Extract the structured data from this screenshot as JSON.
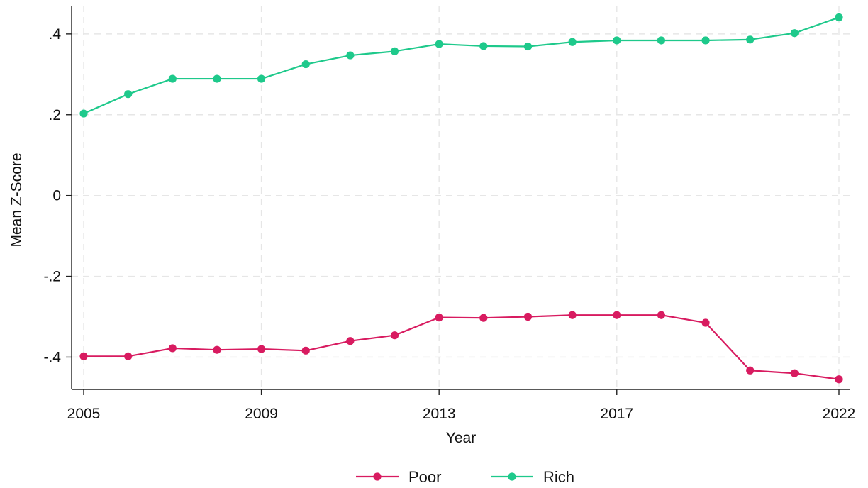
{
  "chart_data": {
    "type": "line",
    "xlabel": "Year",
    "ylabel": "Mean Z-Score",
    "xlim": [
      2005,
      2022
    ],
    "ylim": [
      -0.48,
      0.47
    ],
    "x_ticks": [
      2005,
      2009,
      2013,
      2017,
      2022
    ],
    "y_ticks": [
      {
        "value": 0.4,
        "label": ".4"
      },
      {
        "value": 0.2,
        "label": ".2"
      },
      {
        "value": 0,
        "label": "0"
      },
      {
        "value": -0.2,
        "label": "-.2"
      },
      {
        "value": -0.4,
        "label": "-.4"
      }
    ],
    "grid": true,
    "legend_position": "bottom-center",
    "x": [
      2005,
      2006,
      2007,
      2008,
      2009,
      2010,
      2011,
      2012,
      2013,
      2014,
      2015,
      2016,
      2017,
      2018,
      2019,
      2020,
      2021,
      2022
    ],
    "series": [
      {
        "name": "Poor",
        "color": "#d81b60",
        "values": [
          -0.398,
          -0.398,
          -0.378,
          -0.382,
          -0.38,
          -0.384,
          -0.36,
          -0.346,
          -0.302,
          -0.303,
          -0.3,
          -0.296,
          -0.296,
          -0.296,
          -0.315,
          -0.433,
          -0.44,
          -0.455
        ]
      },
      {
        "name": "Rich",
        "color": "#1ec98b",
        "values": [
          0.203,
          0.251,
          0.289,
          0.289,
          0.289,
          0.325,
          0.347,
          0.357,
          0.375,
          0.37,
          0.369,
          0.38,
          0.384,
          0.384,
          0.384,
          0.386,
          0.402,
          0.441
        ]
      }
    ]
  }
}
